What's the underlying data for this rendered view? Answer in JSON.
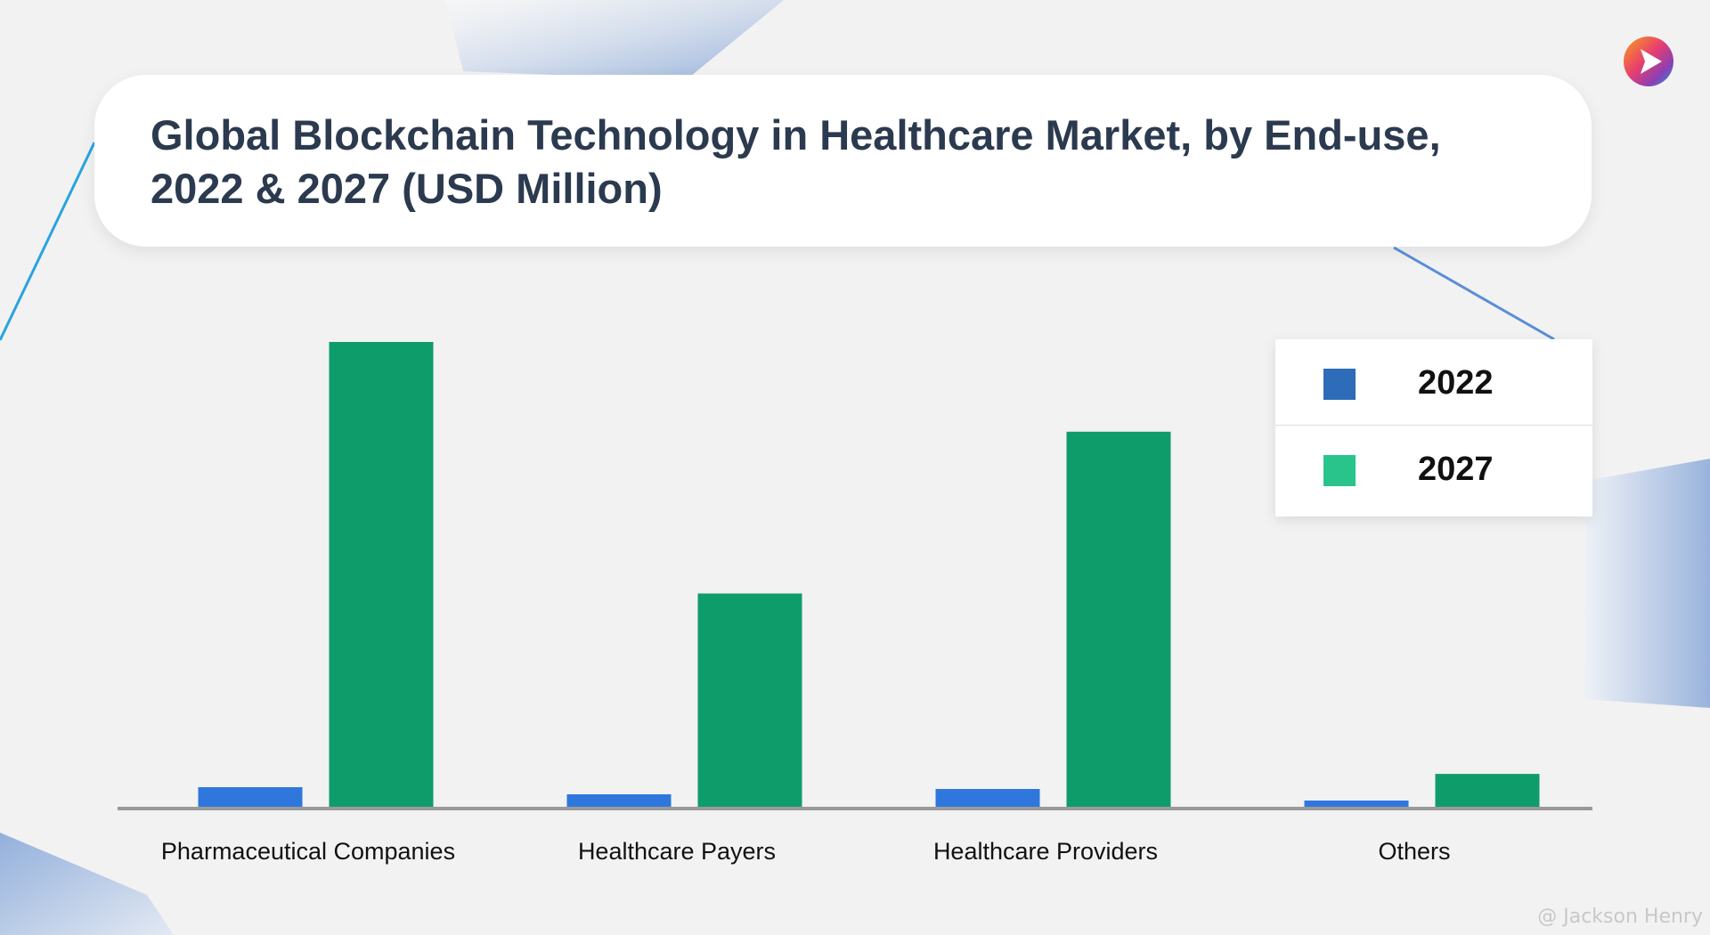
{
  "title": {
    "line1": "Global Blockchain Technology in Healthcare Market, by End-use,",
    "line2": "2022 & 2027 (USD Million)"
  },
  "brand": {
    "logo_icon": "play-arrow-logo-icon",
    "watermark": "@ Jackson Henry"
  },
  "colors": {
    "background": "#f2f2f2",
    "title_text": "#2b3a4f",
    "series_2022": "#2f77dd",
    "series_2027": "#0f9c6b",
    "legend_2022": "#2e6bb8",
    "legend_2027": "#29c48b",
    "axis": "#9a9a9a"
  },
  "legend": {
    "items": [
      {
        "label": "2022",
        "color": "#2e6bb8"
      },
      {
        "label": "2027",
        "color": "#29c48b"
      }
    ]
  },
  "chart_data": {
    "type": "bar",
    "title": "Global Blockchain Technology in Healthcare Market, by End-use, 2022 & 2027 (USD Million)",
    "xlabel": "",
    "ylabel": "",
    "categories": [
      "Pharmaceutical Companies",
      "Healthcare Payers",
      "Healthcare Providers",
      "Others"
    ],
    "series": [
      {
        "name": "2022",
        "values": [
          22,
          14,
          20,
          7
        ]
      },
      {
        "name": "2027",
        "values": [
          523,
          240,
          422,
          37
        ]
      }
    ],
    "ylim": [
      0,
      523
    ],
    "grid": false,
    "legend_position": "top-right"
  }
}
